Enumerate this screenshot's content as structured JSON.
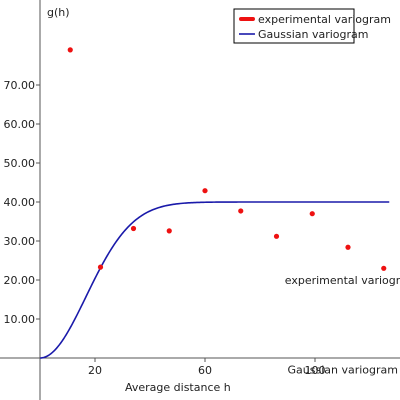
{
  "chart_data": {
    "type": "scatter",
    "xlabel": "Average distance h",
    "ylabel": "g(h)",
    "xlim": [
      0,
      130
    ],
    "ylim": [
      0,
      80
    ],
    "x_ticks": [
      20,
      60,
      100
    ],
    "y_ticks": [
      10,
      20,
      30,
      40,
      50,
      60,
      70
    ],
    "y_tick_labels": [
      "10.00",
      "20.00",
      "30.00",
      "40.00",
      "50.00",
      "60.00",
      "70.00"
    ],
    "legend": {
      "placement": "top-right",
      "entries": [
        {
          "label": "experimental variogram",
          "color": "#ee1111"
        },
        {
          "label": "Gaussian variogram",
          "color": "#1a1aaa"
        }
      ]
    },
    "series": [
      {
        "name": "experimental variogram",
        "kind": "scatter",
        "color": "#ee1111",
        "x": [
          11,
          22,
          34,
          47,
          60,
          73,
          86,
          99,
          112,
          125
        ],
        "y": [
          79,
          23.3,
          33.2,
          32.6,
          42.9,
          37.7,
          31.2,
          37,
          28.4,
          23
        ]
      },
      {
        "name": "Gaussian variogram",
        "kind": "line",
        "color": "#1a1aaa",
        "sill": 40,
        "range": 41,
        "x_max": 127
      }
    ],
    "annotations": [
      {
        "text": "experimental variogram",
        "x": 89,
        "y": 19
      },
      {
        "text": "Gaussian variogram",
        "x": 90,
        "y": -4
      }
    ]
  }
}
